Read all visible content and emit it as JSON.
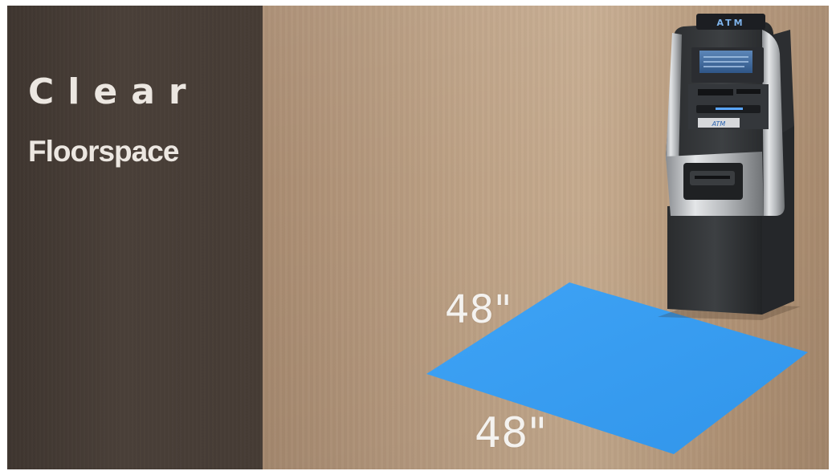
{
  "title": {
    "line1": "Clear",
    "line2": "Floorspace"
  },
  "dimensions": {
    "depth": "48\"",
    "width": "48\""
  },
  "atm": {
    "sign": "ATM",
    "icon": "atm-machine-icon"
  },
  "colors": {
    "left_panel": "#463c35",
    "wall": "#bfa387",
    "floor_square": "#3a9df2",
    "title_text": "#ece7e1",
    "label_text": "#f4f2ef"
  }
}
